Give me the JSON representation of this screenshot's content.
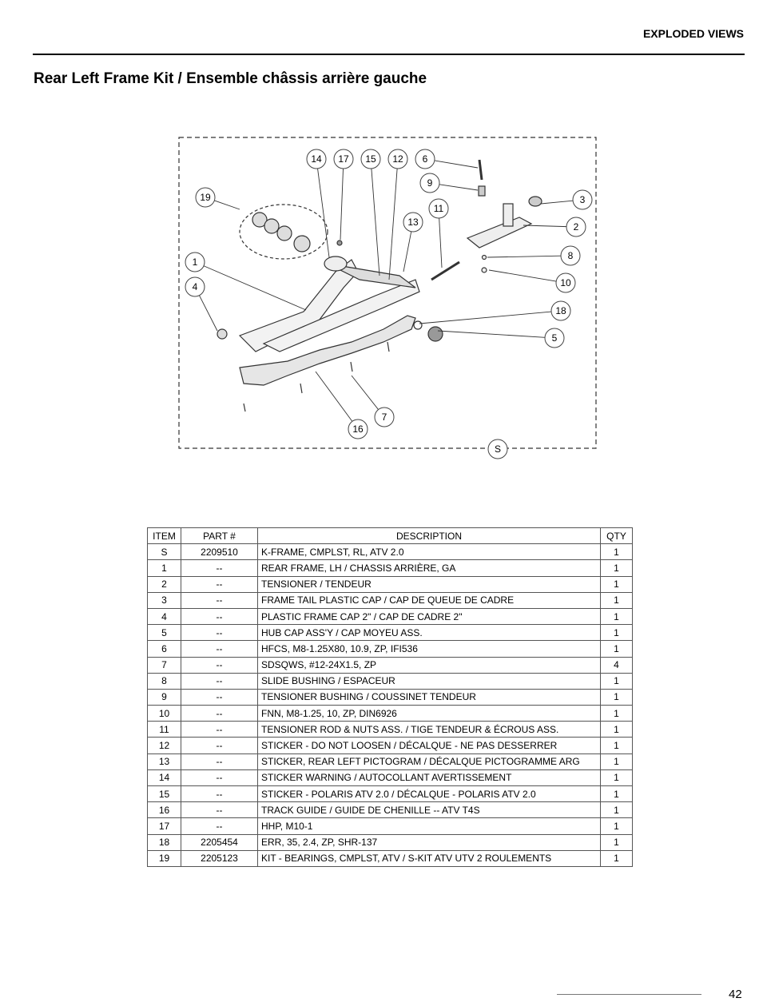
{
  "header": {
    "section": "EXPLODED VIEWS",
    "title": "Rear Left Frame Kit / Ensemble châssis arrière gauche"
  },
  "diagram": {
    "callouts": [
      "14",
      "17",
      "15",
      "12",
      "6",
      "9",
      "3",
      "19",
      "11",
      "13",
      "2",
      "8",
      "1",
      "10",
      "4",
      "18",
      "5",
      "7",
      "16",
      "S"
    ]
  },
  "table": {
    "columns": [
      "ITEM",
      "PART #",
      "DESCRIPTION",
      "QTY"
    ],
    "rows": [
      [
        "S",
        "2209510",
        "K-FRAME, CMPLST, RL, ATV 2.0",
        "1"
      ],
      [
        "1",
        "--",
        "REAR FRAME, LH / CHASSIS ARRIÈRE, GA",
        "1"
      ],
      [
        "2",
        "--",
        "TENSIONER / TENDEUR",
        "1"
      ],
      [
        "3",
        "--",
        "FRAME TAIL PLASTIC CAP / CAP DE QUEUE DE CADRE",
        "1"
      ],
      [
        "4",
        "--",
        "PLASTIC FRAME CAP 2\" / CAP DE CADRE 2\"",
        "1"
      ],
      [
        "5",
        "--",
        "HUB CAP ASS'Y / CAP MOYEU ASS.",
        "1"
      ],
      [
        "6",
        "--",
        "HFCS, M8-1.25X80, 10.9, ZP, IFI536",
        "1"
      ],
      [
        "7",
        "--",
        "SDSQWS, #12-24X1.5, ZP",
        "4"
      ],
      [
        "8",
        "--",
        "SLIDE BUSHING / ESPACEUR",
        "1"
      ],
      [
        "9",
        "--",
        "TENSIONER BUSHING / COUSSINET TENDEUR",
        "1"
      ],
      [
        "10",
        "--",
        "FNN, M8-1.25, 10, ZP, DIN6926",
        "1"
      ],
      [
        "11",
        "--",
        "TENSIONER ROD & NUTS ASS. / TIGE TENDEUR & ÉCROUS ASS.",
        "1"
      ],
      [
        "12",
        "--",
        "STICKER - DO NOT LOOSEN / DÉCALQUE - NE PAS DESSERRER",
        "1"
      ],
      [
        "13",
        "--",
        "STICKER, REAR LEFT PICTOGRAM / DÉCALQUE PICTOGRAMME ARG",
        "1"
      ],
      [
        "14",
        "--",
        "STICKER WARNING / AUTOCOLLANT AVERTISSEMENT",
        "1"
      ],
      [
        "15",
        "--",
        "STICKER - POLARIS ATV 2.0 / DÉCALQUE - POLARIS ATV 2.0",
        "1"
      ],
      [
        "16",
        "--",
        "TRACK GUIDE / GUIDE DE CHENILLE -- ATV T4S",
        "1"
      ],
      [
        "17",
        "--",
        "HHP, M10-1",
        "1"
      ],
      [
        "18",
        "2205454",
        "ERR, 35, 2.4, ZP, SHR-137",
        "1"
      ],
      [
        "19",
        "2205123",
        "KIT - BEARINGS, CMPLST, ATV / S-KIT ATV UTV 2 ROULEMENTS",
        "1"
      ]
    ]
  },
  "footer": {
    "page_number": "42"
  }
}
